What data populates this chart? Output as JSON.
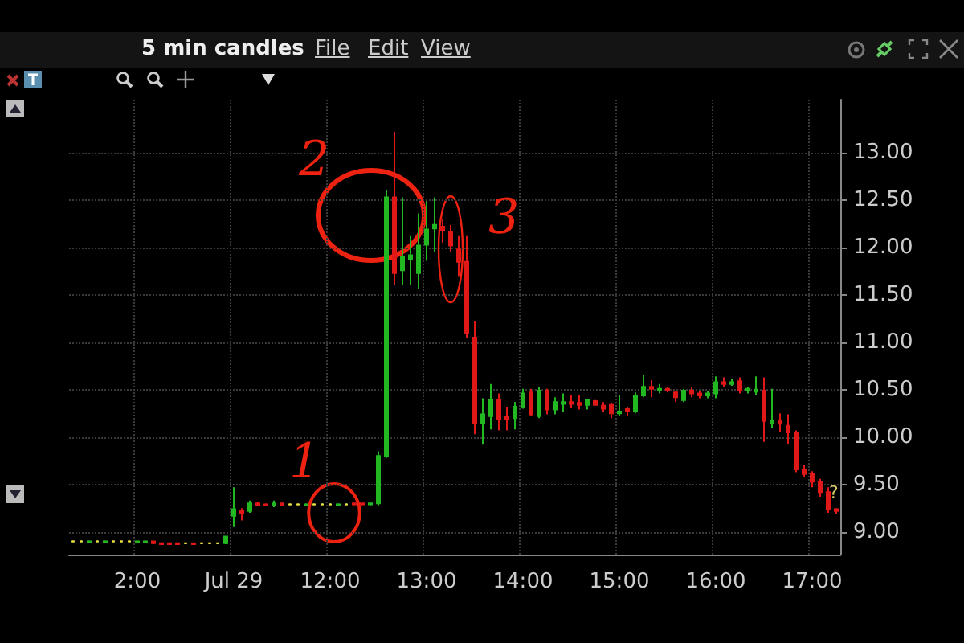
{
  "chart_data": {
    "type": "candlestick",
    "title": "5 min candles",
    "categories": [
      null,
      null,
      null,
      null,
      null,
      null,
      null,
      null,
      "2:00",
      null,
      null,
      null,
      null,
      null,
      null,
      null,
      null,
      null,
      null,
      null,
      "Jul 29",
      null,
      null,
      null,
      null,
      null,
      null,
      null,
      null,
      null,
      null,
      null,
      "12:00",
      null,
      null,
      null,
      null,
      null,
      null,
      null,
      null,
      null,
      null,
      null,
      "13:00",
      null,
      null,
      null,
      null,
      null,
      null,
      null,
      null,
      null,
      null,
      null,
      "14:00",
      null,
      null,
      null,
      null,
      null,
      null,
      null,
      null,
      null,
      null,
      null,
      "15:00",
      null,
      null,
      null,
      null,
      null,
      null,
      null,
      null,
      null,
      null,
      null,
      "16:00",
      null,
      null,
      null,
      null,
      null,
      null,
      null,
      null,
      null,
      null,
      null,
      "17:00",
      null,
      null,
      null
    ],
    "ohlc": [
      [
        8.9,
        8.91,
        8.89,
        8.9
      ],
      [
        8.9,
        8.91,
        8.89,
        8.9
      ],
      [
        8.89,
        8.91,
        8.89,
        8.9
      ],
      [
        8.9,
        8.91,
        8.89,
        8.9
      ],
      [
        8.89,
        8.91,
        8.89,
        8.9
      ],
      [
        8.9,
        8.91,
        8.89,
        8.9
      ],
      [
        8.9,
        8.91,
        8.89,
        8.9
      ],
      [
        8.9,
        8.91,
        8.89,
        8.9
      ],
      [
        8.89,
        8.91,
        8.89,
        8.9
      ],
      [
        8.89,
        8.91,
        8.89,
        8.9
      ],
      [
        8.9,
        8.9,
        8.87,
        8.88
      ],
      [
        8.88,
        8.89,
        8.87,
        8.87
      ],
      [
        8.88,
        8.89,
        8.87,
        8.87
      ],
      [
        8.88,
        8.89,
        8.87,
        8.87
      ],
      [
        8.88,
        8.89,
        8.87,
        8.88
      ],
      [
        8.88,
        8.88,
        8.87,
        8.87
      ],
      [
        8.88,
        8.89,
        8.87,
        8.88
      ],
      [
        8.88,
        8.89,
        8.87,
        8.88
      ],
      [
        8.88,
        8.89,
        8.87,
        8.88
      ],
      [
        8.88,
        8.95,
        8.87,
        8.95
      ],
      [
        9.17,
        9.47,
        9.05,
        9.24
      ],
      [
        9.22,
        9.25,
        9.12,
        9.2
      ],
      [
        9.22,
        9.33,
        9.2,
        9.3
      ],
      [
        9.3,
        9.32,
        9.27,
        9.28
      ],
      [
        9.29,
        9.3,
        9.27,
        9.28
      ],
      [
        9.28,
        9.33,
        9.26,
        9.3
      ],
      [
        9.3,
        9.31,
        9.27,
        9.28
      ],
      [
        9.29,
        9.3,
        9.28,
        9.29
      ],
      [
        9.29,
        9.3,
        9.28,
        9.29
      ],
      [
        9.28,
        9.3,
        9.27,
        9.29
      ],
      [
        9.29,
        9.3,
        9.28,
        9.29
      ],
      [
        9.29,
        9.3,
        9.28,
        9.29
      ],
      [
        9.29,
        9.3,
        9.28,
        9.29
      ],
      [
        9.28,
        9.3,
        9.27,
        9.29
      ],
      [
        9.29,
        9.3,
        9.28,
        9.29
      ],
      [
        9.3,
        9.31,
        9.28,
        9.29
      ],
      [
        9.3,
        9.3,
        9.28,
        9.29
      ],
      [
        9.29,
        9.31,
        9.28,
        9.3
      ],
      [
        9.3,
        9.85,
        9.28,
        9.8
      ],
      [
        9.8,
        12.61,
        9.78,
        12.53
      ],
      [
        12.53,
        13.22,
        11.61,
        11.73
      ],
      [
        11.76,
        12.53,
        11.61,
        11.9
      ],
      [
        11.88,
        12.12,
        11.61,
        11.92
      ],
      [
        11.73,
        12.36,
        11.56,
        12.02
      ],
      [
        12.03,
        12.49,
        11.86,
        12.19
      ],
      [
        12.2,
        12.53,
        11.95,
        12.24
      ],
      [
        12.22,
        12.3,
        12.05,
        12.18
      ],
      [
        12.17,
        12.24,
        11.95,
        12.02
      ],
      [
        11.98,
        12.12,
        11.69,
        11.85
      ],
      [
        11.85,
        12.12,
        11.05,
        11.1
      ],
      [
        11.05,
        11.22,
        10.03,
        10.15
      ],
      [
        10.15,
        10.41,
        9.92,
        10.24
      ],
      [
        10.22,
        10.56,
        10.08,
        10.39
      ],
      [
        10.39,
        10.46,
        10.07,
        10.19
      ],
      [
        10.21,
        10.32,
        10.07,
        10.19
      ],
      [
        10.2,
        10.37,
        10.08,
        10.32
      ],
      [
        10.32,
        10.51,
        10.3,
        10.46
      ],
      [
        10.47,
        10.51,
        10.22,
        10.24
      ],
      [
        10.22,
        10.53,
        10.2,
        10.49
      ],
      [
        10.49,
        10.51,
        10.24,
        10.29
      ],
      [
        10.29,
        10.42,
        10.24,
        10.37
      ],
      [
        10.35,
        10.46,
        10.27,
        10.37
      ],
      [
        10.37,
        10.44,
        10.31,
        10.35
      ],
      [
        10.36,
        10.44,
        10.29,
        10.34
      ],
      [
        10.34,
        10.39,
        10.29,
        10.39
      ],
      [
        10.38,
        10.39,
        10.33,
        10.34
      ],
      [
        10.33,
        10.37,
        10.27,
        10.3
      ],
      [
        10.34,
        10.36,
        10.2,
        10.25
      ],
      [
        10.25,
        10.44,
        10.22,
        10.27
      ],
      [
        10.3,
        10.32,
        10.22,
        10.27
      ],
      [
        10.27,
        10.47,
        10.25,
        10.44
      ],
      [
        10.44,
        10.66,
        10.42,
        10.53
      ],
      [
        10.53,
        10.6,
        10.42,
        10.51
      ],
      [
        10.49,
        10.56,
        10.46,
        10.51
      ],
      [
        10.51,
        10.53,
        10.47,
        10.49
      ],
      [
        10.47,
        10.49,
        10.37,
        10.42
      ],
      [
        10.39,
        10.51,
        10.37,
        10.49
      ],
      [
        10.49,
        10.53,
        10.42,
        10.46
      ],
      [
        10.46,
        10.49,
        10.41,
        10.44
      ],
      [
        10.44,
        10.49,
        10.41,
        10.46
      ],
      [
        10.46,
        10.64,
        10.41,
        10.58
      ],
      [
        10.58,
        10.63,
        10.53,
        10.56
      ],
      [
        10.56,
        10.61,
        10.54,
        10.58
      ],
      [
        10.59,
        10.63,
        10.46,
        10.49
      ],
      [
        10.49,
        10.53,
        10.46,
        10.51
      ],
      [
        10.48,
        10.64,
        10.44,
        10.5
      ],
      [
        10.49,
        10.63,
        9.95,
        10.17
      ],
      [
        10.15,
        10.51,
        10.1,
        10.17
      ],
      [
        10.17,
        10.25,
        10.05,
        10.14
      ],
      [
        10.12,
        10.24,
        9.93,
        10.05
      ],
      [
        10.05,
        10.07,
        9.63,
        9.66
      ],
      [
        9.66,
        9.71,
        9.58,
        9.61
      ],
      [
        9.61,
        9.64,
        9.47,
        9.53
      ],
      [
        9.53,
        9.56,
        9.37,
        9.42
      ],
      [
        9.42,
        9.47,
        9.2,
        9.24
      ],
      [
        9.24,
        9.25,
        9.19,
        9.22
      ]
    ],
    "colors": [
      "#e8e040",
      "#e8e040",
      "#22b822",
      "#e8e040",
      "#22b822",
      "#e8e040",
      "#e8e040",
      "#e8e040",
      "#22b822",
      "#22b822",
      "#e01818",
      "#e01818",
      "#e01818",
      "#e01818",
      "#e8e040",
      "#e01818",
      "#e8e040",
      "#e8e040",
      "#e8e040",
      "#22b822",
      "#22b822",
      "#e01818",
      "#22b822",
      "#e01818",
      "#e01818",
      "#22b822",
      "#e01818",
      "#e8e040",
      "#e8e040",
      "#22b822",
      "#e8e040",
      "#e8e040",
      "#e8e040",
      "#22b822",
      "#e8e040",
      "#e01818",
      "#e01818",
      "#22b822",
      "#22b822",
      "#22b822",
      "#e01818",
      "#22b822",
      "#22b822",
      "#22b822",
      "#22b822",
      "#22b822",
      "#e01818",
      "#e01818",
      "#e01818",
      "#e01818",
      "#e01818",
      "#22b822",
      "#22b822",
      "#e01818",
      "#e01818",
      "#22b822",
      "#22b822",
      "#e01818",
      "#22b822",
      "#e01818",
      "#22b822",
      "#22b822",
      "#e01818",
      "#e01818",
      "#22b822",
      "#e01818",
      "#e01818",
      "#e01818",
      "#22b822",
      "#e01818",
      "#22b822",
      "#22b822",
      "#e01818",
      "#22b822",
      "#e01818",
      "#e01818",
      "#22b822",
      "#e01818",
      "#e01818",
      "#22b822",
      "#22b822",
      "#e01818",
      "#22b822",
      "#e01818",
      "#22b822",
      "#22b822",
      "#e01818",
      "#22b822",
      "#e01818",
      "#e01818",
      "#e01818",
      "#e01818",
      "#e01818",
      "#e01818",
      "#e01818",
      "#e01818"
    ],
    "ylim": [
      8.76,
      13.56
    ],
    "yticks": [
      {
        "value": 9,
        "label": "9.00"
      },
      {
        "value": 9.5,
        "label": "9.50"
      },
      {
        "value": 10,
        "label": "10.00"
      },
      {
        "value": 10.5,
        "label": "10.50"
      },
      {
        "value": 11,
        "label": "11.00"
      },
      {
        "value": 11.5,
        "label": "11.50"
      },
      {
        "value": 12,
        "label": "12.00"
      },
      {
        "value": 12.5,
        "label": "12.50"
      },
      {
        "value": 13,
        "label": "13.00"
      }
    ],
    "grid": true,
    "annotations": [
      "File",
      "Edit",
      "View",
      "1",
      "2",
      "3",
      "?"
    ]
  }
}
